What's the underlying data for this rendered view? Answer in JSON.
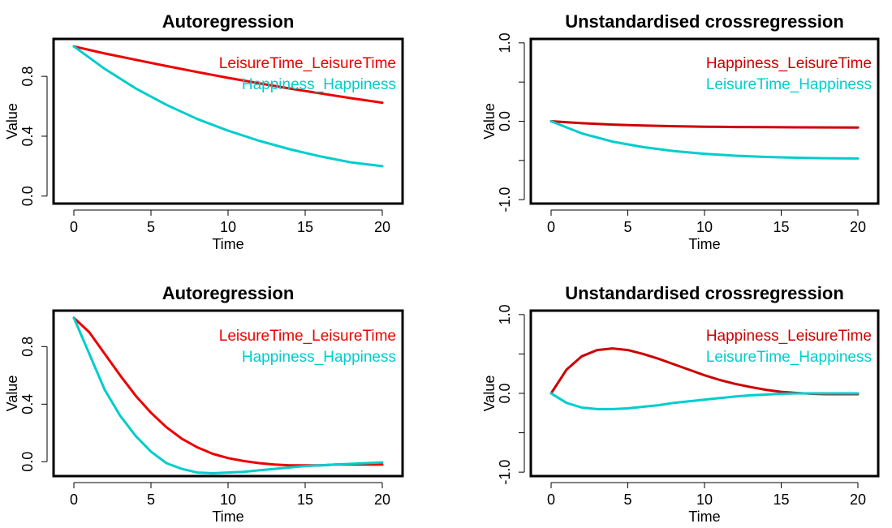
{
  "chart_data": [
    {
      "type": "line",
      "title": "Autoregression",
      "xlabel": "Time",
      "ylabel": "Value",
      "xlim": [
        0,
        20
      ],
      "ylim": [
        -0.05,
        1.05
      ],
      "xticks": [
        0,
        5,
        10,
        15,
        20
      ],
      "xtick_labels": [
        "0",
        "5",
        "10",
        "15",
        "20"
      ],
      "yticks": [
        0.0,
        0.4,
        0.8
      ],
      "ytick_labels": [
        "0.0",
        "0.4",
        "0.8"
      ],
      "legend": "top-right",
      "series": [
        {
          "name": "LeisureTime_LeisureTime",
          "color": "#EE0000",
          "x": [
            0,
            2,
            4,
            6,
            8,
            10,
            12,
            14,
            16,
            18,
            20
          ],
          "y": [
            1.0,
            0.953,
            0.911,
            0.869,
            0.829,
            0.79,
            0.754,
            0.719,
            0.686,
            0.654,
            0.624
          ]
        },
        {
          "name": "Happiness_Happiness",
          "color": "#00CDCD",
          "x": [
            0,
            2,
            4,
            6,
            8,
            10,
            12,
            14,
            16,
            18,
            20
          ],
          "y": [
            1.0,
            0.85,
            0.72,
            0.61,
            0.515,
            0.437,
            0.37,
            0.313,
            0.265,
            0.225,
            0.2
          ]
        }
      ]
    },
    {
      "type": "line",
      "title": "Unstandardised crossregression",
      "xlabel": "Time",
      "ylabel": "Value",
      "xlim": [
        0,
        20
      ],
      "ylim": [
        -1.05,
        1.05
      ],
      "xticks": [
        0,
        5,
        10,
        15,
        20
      ],
      "xtick_labels": [
        "0",
        "5",
        "10",
        "15",
        "20"
      ],
      "yticks": [
        -1.0,
        -0.5,
        0.0,
        0.5,
        1.0
      ],
      "ytick_labels": [
        "-1.0",
        "",
        "0.0",
        "",
        "1.0"
      ],
      "legend": "top-right",
      "series": [
        {
          "name": "Happiness_LeisureTime",
          "color": "#CD0000",
          "x": [
            0,
            2,
            4,
            6,
            8,
            10,
            12,
            14,
            16,
            18,
            20
          ],
          "y": [
            0.0,
            -0.025,
            -0.042,
            -0.055,
            -0.063,
            -0.069,
            -0.073,
            -0.076,
            -0.078,
            -0.079,
            -0.08
          ]
        },
        {
          "name": "LeisureTime_Happiness",
          "color": "#00CDCD",
          "x": [
            0,
            2,
            4,
            6,
            8,
            10,
            12,
            14,
            16,
            18,
            20
          ],
          "y": [
            0.0,
            -0.155,
            -0.26,
            -0.33,
            -0.38,
            -0.415,
            -0.44,
            -0.455,
            -0.465,
            -0.472,
            -0.475
          ]
        }
      ]
    },
    {
      "type": "line",
      "title": "Autoregression",
      "xlabel": "Time",
      "ylabel": "Value",
      "xlim": [
        0,
        20
      ],
      "ylim": [
        -0.1,
        1.05
      ],
      "xticks": [
        0,
        5,
        10,
        15,
        20
      ],
      "xtick_labels": [
        "0",
        "5",
        "10",
        "15",
        "20"
      ],
      "yticks": [
        0.0,
        0.4,
        0.8
      ],
      "ytick_labels": [
        "0.0",
        "0.4",
        "0.8"
      ],
      "legend": "top-right",
      "series": [
        {
          "name": "LeisureTime_LeisureTime",
          "color": "#EE0000",
          "x": [
            0,
            1,
            2,
            3,
            4,
            5,
            6,
            7,
            8,
            9,
            10,
            11,
            12,
            13,
            14,
            15,
            16,
            17,
            18,
            19,
            20
          ],
          "y": [
            1.0,
            0.9,
            0.75,
            0.6,
            0.46,
            0.34,
            0.24,
            0.16,
            0.1,
            0.055,
            0.025,
            0.005,
            -0.01,
            -0.02,
            -0.025,
            -0.025,
            -0.025,
            -0.02,
            -0.02,
            -0.02,
            -0.02
          ]
        },
        {
          "name": "Happiness_Happiness",
          "color": "#00CDCD",
          "x": [
            0,
            1,
            2,
            3,
            4,
            5,
            6,
            7,
            8,
            9,
            10,
            11,
            12,
            13,
            14,
            15,
            16,
            17,
            18,
            19,
            20
          ],
          "y": [
            1.0,
            0.75,
            0.5,
            0.32,
            0.18,
            0.07,
            -0.01,
            -0.05,
            -0.075,
            -0.08,
            -0.075,
            -0.07,
            -0.06,
            -0.05,
            -0.04,
            -0.03,
            -0.025,
            -0.02,
            -0.015,
            -0.01,
            -0.005
          ]
        }
      ]
    },
    {
      "type": "line",
      "title": "Unstandardised crossregression",
      "xlabel": "Time",
      "ylabel": "Value",
      "xlim": [
        0,
        20
      ],
      "ylim": [
        -1.05,
        1.05
      ],
      "xticks": [
        0,
        5,
        10,
        15,
        20
      ],
      "xtick_labels": [
        "0",
        "5",
        "10",
        "15",
        "20"
      ],
      "yticks": [
        -1.0,
        -0.5,
        0.0,
        0.5,
        1.0
      ],
      "ytick_labels": [
        "-1.0",
        "",
        "0.0",
        "",
        "1.0"
      ],
      "legend": "top-right",
      "series": [
        {
          "name": "Happiness_LeisureTime",
          "color": "#CD0000",
          "x": [
            0,
            1,
            2,
            3,
            4,
            5,
            6,
            7,
            8,
            9,
            10,
            11,
            12,
            13,
            14,
            15,
            16,
            17,
            18,
            19,
            20
          ],
          "y": [
            0.0,
            0.3,
            0.47,
            0.55,
            0.57,
            0.55,
            0.5,
            0.44,
            0.37,
            0.3,
            0.23,
            0.17,
            0.12,
            0.08,
            0.045,
            0.02,
            0.005,
            -0.005,
            -0.01,
            -0.01,
            -0.01
          ]
        },
        {
          "name": "LeisureTime_Happiness",
          "color": "#00CDCD",
          "x": [
            0,
            1,
            2,
            3,
            4,
            5,
            6,
            7,
            8,
            9,
            10,
            11,
            12,
            13,
            14,
            15,
            16,
            17,
            18,
            19,
            20
          ],
          "y": [
            0.0,
            -0.12,
            -0.18,
            -0.2,
            -0.2,
            -0.19,
            -0.17,
            -0.15,
            -0.12,
            -0.1,
            -0.08,
            -0.06,
            -0.04,
            -0.025,
            -0.015,
            -0.005,
            0.0,
            0.0,
            0.0,
            0.0,
            0.0
          ]
        }
      ]
    }
  ]
}
